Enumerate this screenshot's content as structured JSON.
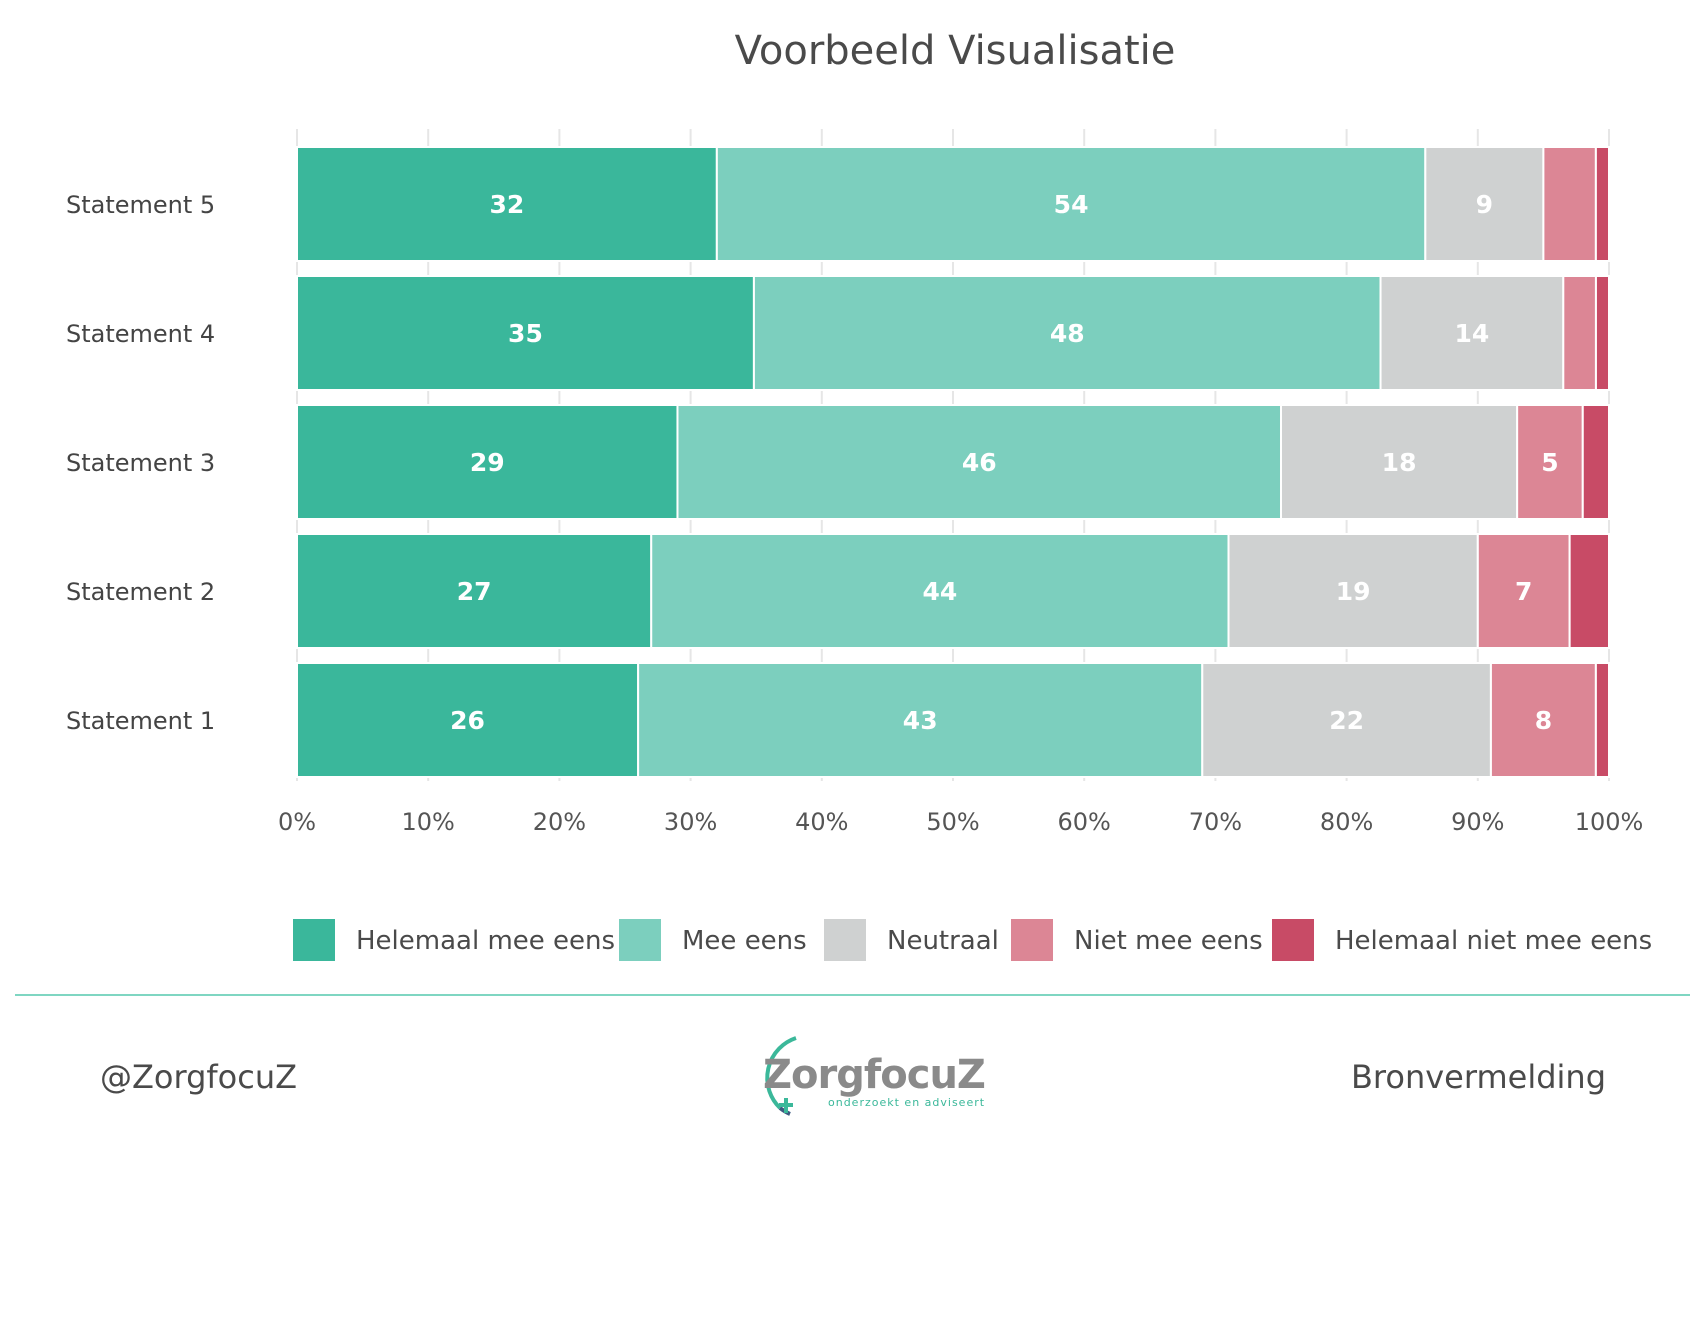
{
  "chart_data": {
    "type": "bar",
    "orientation": "horizontal",
    "stacked": "percent",
    "title": "Voorbeeld Visualisatie",
    "categories": [
      "Statement 5",
      "Statement 4",
      "Statement 3",
      "Statement 2",
      "Statement 1"
    ],
    "series": [
      {
        "name": "Helemaal mee eens",
        "color": "#3ab79b",
        "values": [
          32,
          35,
          29,
          27,
          26
        ]
      },
      {
        "name": "Mee eens",
        "color": "#7ccfbe",
        "values": [
          54,
          48,
          46,
          44,
          43
        ]
      },
      {
        "name": "Neutraal",
        "color": "#cfd1d1",
        "values": [
          9,
          14,
          18,
          19,
          22
        ]
      },
      {
        "name": "Niet mee eens",
        "color": "#dc8695",
        "values": [
          4,
          2.5,
          5,
          7,
          8
        ]
      },
      {
        "name": "Helemaal niet mee eens",
        "color": "#c84b66",
        "values": [
          1,
          1,
          2,
          3,
          1
        ]
      }
    ],
    "data_labels_shown_above": 5,
    "xlim": [
      0,
      100
    ],
    "x_ticks": [
      "0%",
      "10%",
      "20%",
      "30%",
      "40%",
      "50%",
      "60%",
      "70%",
      "80%",
      "90%",
      "100%"
    ],
    "grid": "vertical",
    "legend_position": "bottom"
  },
  "footer": {
    "handle": "@ZorgfocuZ",
    "credit": "Bronvermelding",
    "logo_name": "ZorgfocuZ",
    "logo_tagline": "onderzoekt en adviseert",
    "divider_color": "#7fd6c2"
  }
}
